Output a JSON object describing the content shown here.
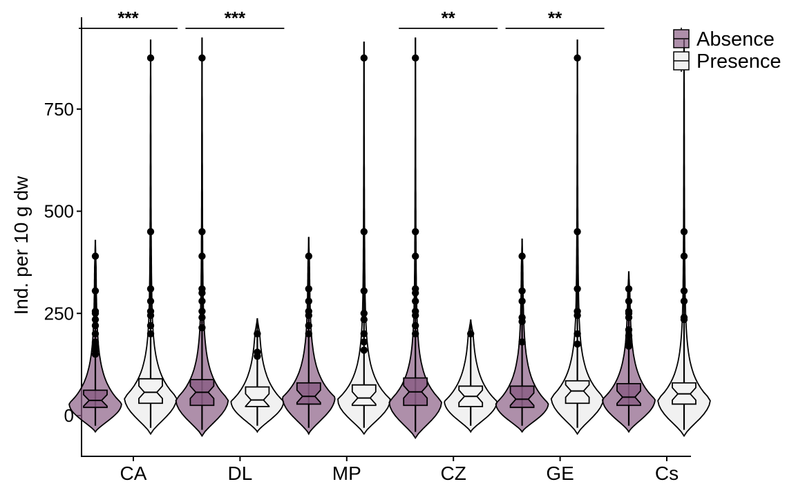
{
  "chart_data": {
    "type": "violin",
    "ylabel": "Ind. per 10 g dw",
    "ylim": [
      -60,
      990
    ],
    "yticks": [
      0,
      250,
      500,
      750
    ],
    "ytick_labels": [
      "0",
      "250",
      "500",
      "750"
    ],
    "legend_position": "top-right",
    "colors": {
      "Absence": "#8b5f86",
      "Presence": "#f1f1f1"
    },
    "series": [
      {
        "name": "Absence",
        "color": "#8b5f86",
        "fill_opacity": 0.7
      },
      {
        "name": "Presence",
        "color": "#f1f1f1",
        "fill_opacity": 1.0
      }
    ],
    "categories": [
      "CA",
      "DL",
      "MP",
      "CZ",
      "GE",
      "Cs"
    ],
    "groups": [
      {
        "category": "CA",
        "significance": "***",
        "Absence": {
          "ymin": -40,
          "ymax": 430,
          "mode": 30,
          "width": 1.0,
          "box": {
            "q1": 20,
            "median": 37,
            "q3": 62,
            "whisker_lo": 0,
            "whisker_hi": 140
          },
          "outliers": [
            150,
            160,
            170,
            180,
            200,
            220,
            235,
            250,
            255,
            305,
            390
          ]
        },
        "Presence": {
          "ymin": -45,
          "ymax": 920,
          "mode": 45,
          "width": 1.0,
          "box": {
            "q1": 30,
            "median": 57,
            "q3": 90,
            "whisker_lo": 0,
            "whisker_hi": 180
          },
          "outliers": [
            200,
            220,
            245,
            255,
            280,
            310,
            450,
            875
          ]
        }
      },
      {
        "category": "DL",
        "significance": "***",
        "Absence": {
          "ymin": -50,
          "ymax": 925,
          "mode": 40,
          "width": 1.0,
          "box": {
            "q1": 25,
            "median": 57,
            "q3": 88,
            "whisker_lo": 0,
            "whisker_hi": 195
          },
          "outliers": [
            215,
            240,
            255,
            280,
            300,
            310,
            390,
            450,
            875
          ]
        },
        "Presence": {
          "ymin": -40,
          "ymax": 238,
          "mode": 35,
          "width": 1.0,
          "box": {
            "q1": 22,
            "median": 38,
            "q3": 70,
            "whisker_lo": 0,
            "whisker_hi": 140
          },
          "outliers": [
            145,
            155,
            200
          ]
        }
      },
      {
        "category": "MP",
        "significance": "",
        "Absence": {
          "ymin": -45,
          "ymax": 437,
          "mode": 45,
          "width": 1.0,
          "box": {
            "q1": 28,
            "median": 47,
            "q3": 80,
            "whisker_lo": 0,
            "whisker_hi": 165
          },
          "outliers": [
            200,
            220,
            245,
            255,
            280,
            310,
            390
          ]
        },
        "Presence": {
          "ymin": -45,
          "ymax": 915,
          "mode": 40,
          "width": 1.0,
          "box": {
            "q1": 25,
            "median": 43,
            "q3": 75,
            "whisker_lo": 0,
            "whisker_hi": 150
          },
          "outliers": [
            160,
            180,
            200,
            235,
            250,
            305,
            450,
            875
          ]
        }
      },
      {
        "category": "CZ",
        "significance": "**",
        "Absence": {
          "ymin": -55,
          "ymax": 925,
          "mode": 35,
          "width": 1.0,
          "box": {
            "q1": 25,
            "median": 58,
            "q3": 92,
            "whisker_lo": 0,
            "whisker_hi": 190
          },
          "outliers": [
            200,
            220,
            245,
            255,
            280,
            300,
            310,
            390,
            450,
            875
          ]
        },
        "Presence": {
          "ymin": -40,
          "ymax": 235,
          "mode": 35,
          "width": 1.0,
          "box": {
            "q1": 22,
            "median": 47,
            "q3": 72,
            "whisker_lo": 0,
            "whisker_hi": 150
          },
          "outliers": [
            200
          ]
        }
      },
      {
        "category": "GE",
        "significance": "**",
        "Absence": {
          "ymin": -40,
          "ymax": 433,
          "mode": 30,
          "width": 1.0,
          "box": {
            "q1": 20,
            "median": 40,
            "q3": 72,
            "whisker_lo": 0,
            "whisker_hi": 155
          },
          "outliers": [
            180,
            230,
            240,
            280,
            305,
            390
          ]
        },
        "Presence": {
          "ymin": -45,
          "ymax": 920,
          "mode": 45,
          "width": 1.0,
          "box": {
            "q1": 30,
            "median": 60,
            "q3": 85,
            "whisker_lo": 0,
            "whisker_hi": 165
          },
          "outliers": [
            175,
            200,
            245,
            255,
            310,
            450,
            875
          ]
        }
      },
      {
        "category": "Cs",
        "significance": "",
        "Absence": {
          "ymin": -40,
          "ymax": 353,
          "mode": 40,
          "width": 1.0,
          "box": {
            "q1": 25,
            "median": 45,
            "q3": 78,
            "whisker_lo": 0,
            "whisker_hi": 160
          },
          "outliers": [
            170,
            180,
            195,
            210,
            240,
            250,
            255,
            280,
            310
          ]
        },
        "Presence": {
          "ymin": -50,
          "ymax": 920,
          "mode": 40,
          "width": 1.0,
          "box": {
            "q1": 28,
            "median": 53,
            "q3": 80,
            "whisker_lo": 0,
            "whisker_hi": 160
          },
          "outliers": [
            235,
            240,
            280,
            305,
            390,
            450,
            875
          ]
        }
      }
    ]
  }
}
